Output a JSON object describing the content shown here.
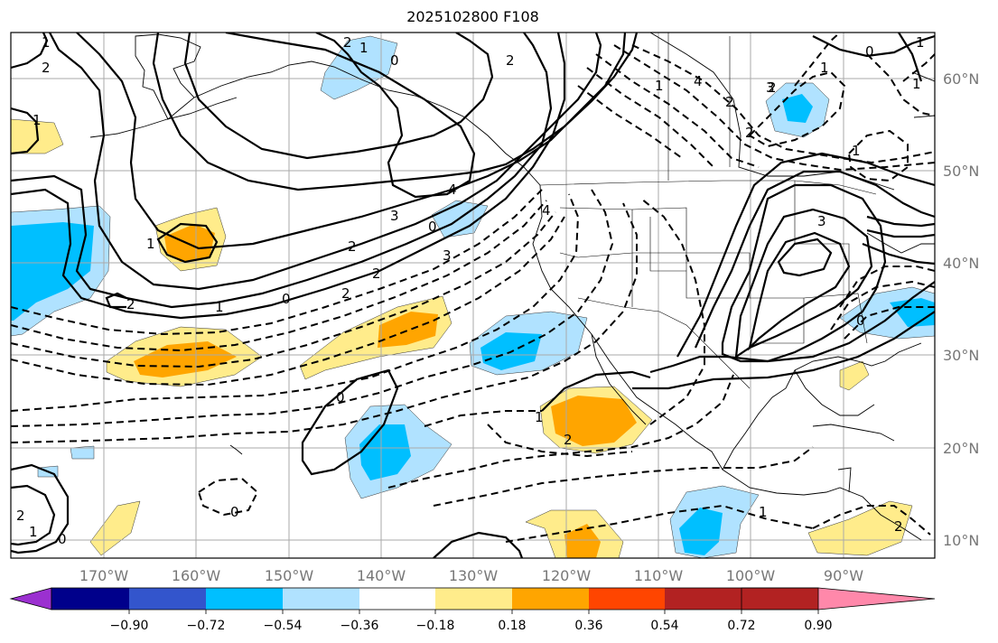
{
  "title": "2025102800 F108",
  "map": {
    "lon_labels": [
      "170°W",
      "160°W",
      "150°W",
      "140°W",
      "130°W",
      "120°W",
      "110°W",
      "100°W",
      "90°W"
    ],
    "lat_labels": [
      "60°N",
      "50°N",
      "40°N",
      "30°N",
      "20°N",
      "10°N"
    ],
    "contour_labels": {
      "pos": [
        "1",
        "2",
        "1",
        "1",
        "2",
        "2",
        "1",
        "2",
        "3",
        "1",
        "1",
        "2",
        "3",
        "4",
        "1",
        "0",
        "0",
        "0",
        "1",
        "2",
        "0",
        "0",
        "1",
        "2",
        "0"
      ],
      "neg": [
        "0",
        "2",
        "3",
        "4",
        "2",
        "3",
        "4",
        "2",
        "1",
        "2",
        "1",
        "0",
        "1",
        "2",
        "2",
        "1"
      ]
    }
  },
  "colorbar": {
    "tick_labels": [
      "−0.90",
      "−0.72",
      "−0.54",
      "−0.36",
      "−0.18",
      "0.18",
      "0.36",
      "0.54",
      "0.72",
      "0.90"
    ],
    "colors": [
      "#9b30d0",
      "#00008b",
      "#3355cc",
      "#00bfff",
      "#b0e2ff",
      "#ffffff",
      "#ffec8b",
      "#ffa500",
      "#ff4500",
      "#b22222",
      "#ff88aa"
    ]
  }
}
